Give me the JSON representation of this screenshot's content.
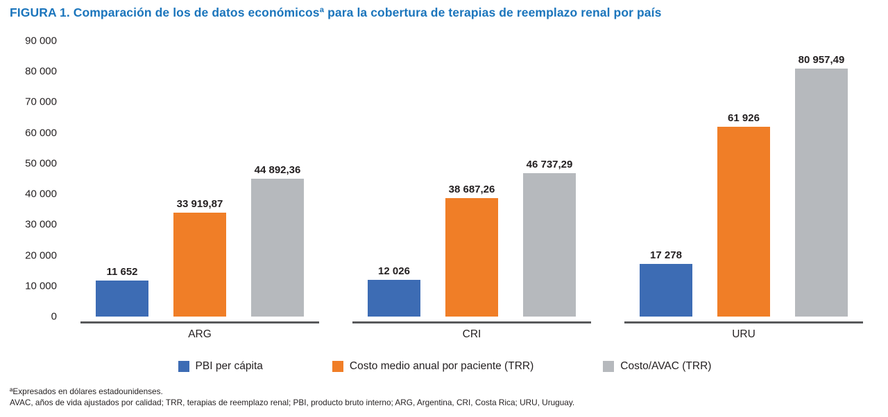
{
  "title": "FIGURA 1. Comparación de los de datos económicosª para la cobertura de terapias de reemplazo renal por país",
  "title_color": "#1b75bc",
  "chart_data": {
    "type": "bar",
    "categories": [
      "ARG",
      "CRI",
      "URU"
    ],
    "series": [
      {
        "name": "PBI per cápita",
        "color": "#3d6cb4",
        "values": [
          11652,
          12026,
          17278
        ],
        "labels": [
          "11 652",
          "12 026",
          "17 278"
        ]
      },
      {
        "name": "Costo medio anual por paciente (TRR)",
        "color": "#f07e27",
        "values": [
          33919.87,
          38687.26,
          61926
        ],
        "labels": [
          "33 919,87",
          "38 687,26",
          "61 926"
        ]
      },
      {
        "name": "Costo/AVAC (TRR)",
        "color": "#b6b9bd",
        "values": [
          44892.36,
          46737.29,
          80957.49
        ],
        "labels": [
          "44 892,36",
          "46 737,29",
          "80 957,49"
        ]
      }
    ],
    "ylim": [
      0,
      90000
    ],
    "yticks": [
      0,
      10000,
      20000,
      30000,
      40000,
      50000,
      60000,
      70000,
      80000,
      90000
    ],
    "ytick_labels": [
      "0",
      "10 000",
      "20 000",
      "30 000",
      "40 000",
      "50 000",
      "60 000",
      "70 000",
      "80 000",
      "90 000"
    ],
    "xlabel": "",
    "ylabel": "",
    "grid": false,
    "legend_position": "bottom"
  },
  "footnotes": {
    "line1": "ªExpresados en dólares estadounidenses.",
    "line2": "AVAC, años de vida ajustados por calidad; TRR, terapias de reemplazo renal; PBI, producto bruto interno; ARG, Argentina, CRI, Costa Rica; URU, Uruguay."
  }
}
